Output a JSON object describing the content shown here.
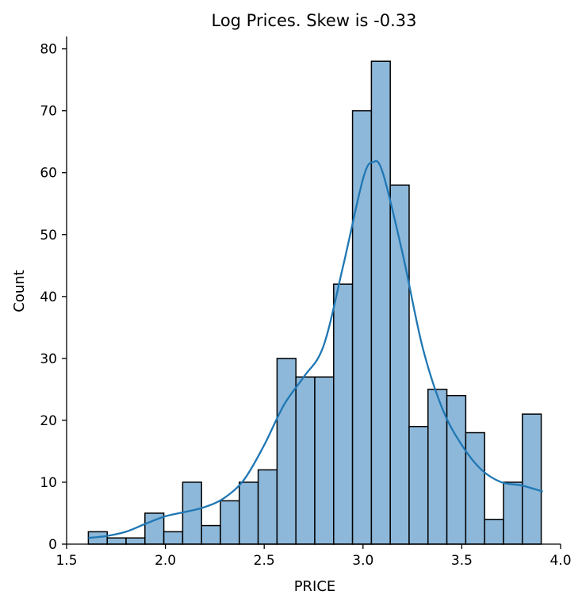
{
  "chart_data": {
    "type": "bar",
    "title": "Log Prices. Skew is -0.33",
    "xlabel": "PRICE",
    "ylabel": "Count",
    "xlim": [
      1.5,
      4.0
    ],
    "ylim": [
      0,
      82
    ],
    "xticks": [
      "1.5",
      "2.0",
      "2.5",
      "3.0",
      "3.5",
      "4.0"
    ],
    "yticks": [
      "0",
      "10",
      "20",
      "30",
      "40",
      "50",
      "60",
      "70",
      "80"
    ],
    "grid": false,
    "bar_color": "#8DB8DA",
    "edge_color": "#000000",
    "kde_color": "#1F77B4",
    "bins": {
      "start": 1.61,
      "width": 0.0955,
      "counts": [
        2,
        1,
        1,
        5,
        2,
        10,
        3,
        7,
        10,
        12,
        30,
        27,
        27,
        42,
        70,
        78,
        58,
        19,
        25,
        24,
        18,
        4,
        10,
        21
      ]
    },
    "kde": {
      "x": [
        1.61,
        1.7,
        1.8,
        1.9,
        2.0,
        2.1,
        2.2,
        2.3,
        2.4,
        2.5,
        2.6,
        2.7,
        2.8,
        2.9,
        3.0,
        3.05,
        3.1,
        3.2,
        3.3,
        3.4,
        3.5,
        3.6,
        3.7,
        3.8,
        3.91
      ],
      "y": [
        1,
        1.3,
        2,
        3.3,
        4.5,
        5.2,
        6,
        7.5,
        10.5,
        16,
        22.5,
        27,
        32,
        45,
        59,
        61.7,
        60,
        47,
        32,
        22,
        16,
        12,
        10,
        9.5,
        8.5
      ]
    }
  }
}
